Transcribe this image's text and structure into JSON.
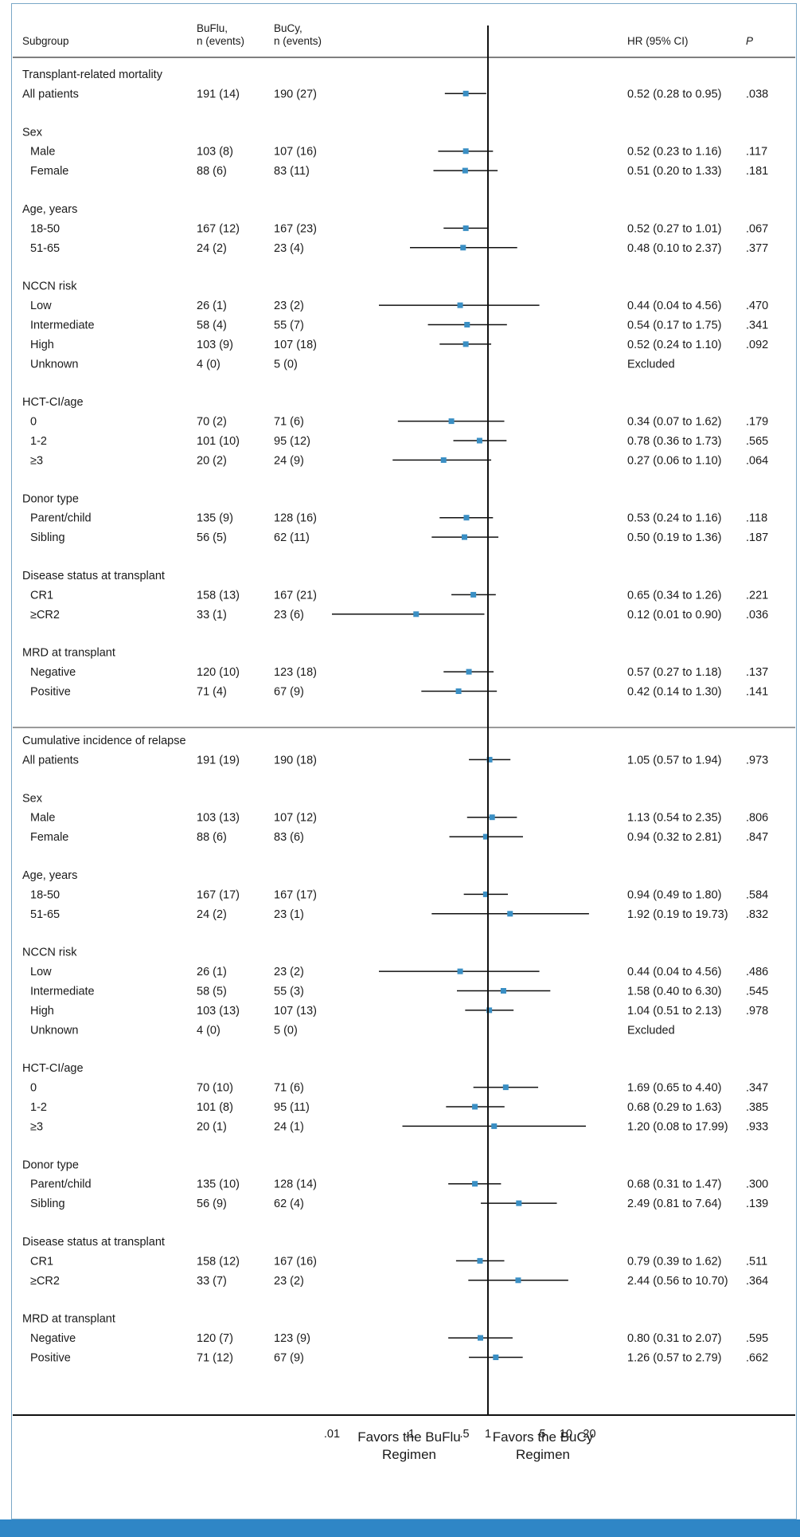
{
  "colors": {
    "frame": "#7aa7c7",
    "bottom_bar": "#2f86c6",
    "marker": "#3a8fc4",
    "line": "#111111",
    "divider": "#9a9a9a"
  },
  "header": {
    "subgroup": "Subgroup",
    "buflu_line1": "BuFlu,",
    "buflu_line2": "n (events)",
    "bucy_line1": "BuCy,",
    "bucy_line2": "n (events)",
    "hr": "HR (95% CI)",
    "p": "P"
  },
  "footer": {
    "favors_left_line1": "Favors the BuFlu",
    "favors_left_line2": "Regimen",
    "favors_right_line1": "Favors the BuCy",
    "favors_right_line2": "Regimen"
  },
  "chart_data": {
    "type": "forest",
    "x_scale": "log",
    "x_ticks": [
      {
        "value": 0.01,
        "label": ".01"
      },
      {
        "value": 0.1,
        "label": ".1"
      },
      {
        "value": 0.5,
        "label": ".5"
      },
      {
        "value": 1,
        "label": "1"
      },
      {
        "value": 5,
        "label": "5"
      },
      {
        "value": 10,
        "label": "10"
      },
      {
        "value": 20,
        "label": "20"
      }
    ],
    "reference_line": 1,
    "sections": [
      {
        "title": "Transplant-related mortality",
        "groups": [
          {
            "title": "",
            "rows": [
              {
                "label": "All patients",
                "buflu": "191 (14)",
                "bucy": "190 (27)",
                "hr": 0.52,
                "lo": 0.28,
                "hi": 0.95,
                "hr_text": "0.52 (0.28 to 0.95)",
                "p": ".038"
              }
            ]
          },
          {
            "title": "Sex",
            "rows": [
              {
                "label": "Male",
                "buflu": "103 (8)",
                "bucy": "107 (16)",
                "hr": 0.52,
                "lo": 0.23,
                "hi": 1.16,
                "hr_text": "0.52 (0.23 to 1.16)",
                "p": ".117"
              },
              {
                "label": "Female",
                "buflu": "88 (6)",
                "bucy": "83 (11)",
                "hr": 0.51,
                "lo": 0.2,
                "hi": 1.33,
                "hr_text": "0.51 (0.20 to 1.33)",
                "p": ".181"
              }
            ]
          },
          {
            "title": "Age, years",
            "rows": [
              {
                "label": "18-50",
                "buflu": "167 (12)",
                "bucy": "167 (23)",
                "hr": 0.52,
                "lo": 0.27,
                "hi": 1.01,
                "hr_text": "0.52 (0.27 to 1.01)",
                "p": ".067"
              },
              {
                "label": "51-65",
                "buflu": "24 (2)",
                "bucy": "23 (4)",
                "hr": 0.48,
                "lo": 0.1,
                "hi": 2.37,
                "hr_text": "0.48 (0.10 to 2.37)",
                "p": ".377"
              }
            ]
          },
          {
            "title": "NCCN risk",
            "rows": [
              {
                "label": "Low",
                "buflu": "26 (1)",
                "bucy": "23 (2)",
                "hr": 0.44,
                "lo": 0.04,
                "hi": 4.56,
                "hr_text": "0.44 (0.04 to 4.56)",
                "p": ".470"
              },
              {
                "label": "Intermediate",
                "buflu": "58 (4)",
                "bucy": "55 (7)",
                "hr": 0.54,
                "lo": 0.17,
                "hi": 1.75,
                "hr_text": "0.54 (0.17 to 1.75)",
                "p": ".341"
              },
              {
                "label": "High",
                "buflu": "103 (9)",
                "bucy": "107 (18)",
                "hr": 0.52,
                "lo": 0.24,
                "hi": 1.1,
                "hr_text": "0.52 (0.24 to 1.10)",
                "p": ".092"
              },
              {
                "label": "Unknown",
                "buflu": "4 (0)",
                "bucy": "5 (0)",
                "hr": null,
                "lo": null,
                "hi": null,
                "hr_text": "Excluded",
                "p": ""
              }
            ]
          },
          {
            "title": "HCT-CI/age",
            "rows": [
              {
                "label": "0",
                "buflu": "70 (2)",
                "bucy": "71 (6)",
                "hr": 0.34,
                "lo": 0.07,
                "hi": 1.62,
                "hr_text": "0.34 (0.07 to 1.62)",
                "p": ".179"
              },
              {
                "label": "1-2",
                "buflu": "101 (10)",
                "bucy": "95 (12)",
                "hr": 0.78,
                "lo": 0.36,
                "hi": 1.73,
                "hr_text": "0.78 (0.36 to 1.73)",
                "p": ".565"
              },
              {
                "label": "≥3",
                "buflu": "20 (2)",
                "bucy": "24 (9)",
                "hr": 0.27,
                "lo": 0.06,
                "hi": 1.1,
                "hr_text": "0.27 (0.06 to 1.10)",
                "p": ".064"
              }
            ]
          },
          {
            "title": "Donor type",
            "rows": [
              {
                "label": "Parent/child",
                "buflu": "135 (9)",
                "bucy": "128 (16)",
                "hr": 0.53,
                "lo": 0.24,
                "hi": 1.16,
                "hr_text": "0.53 (0.24 to 1.16)",
                "p": ".118"
              },
              {
                "label": "Sibling",
                "buflu": "56 (5)",
                "bucy": "62 (11)",
                "hr": 0.5,
                "lo": 0.19,
                "hi": 1.36,
                "hr_text": "0.50 (0.19 to 1.36)",
                "p": ".187"
              }
            ]
          },
          {
            "title": "Disease status at transplant",
            "rows": [
              {
                "label": "CR1",
                "buflu": "158 (13)",
                "bucy": "167 (21)",
                "hr": 0.65,
                "lo": 0.34,
                "hi": 1.26,
                "hr_text": "0.65 (0.34 to 1.26)",
                "p": ".221"
              },
              {
                "label": "≥CR2",
                "buflu": "33 (1)",
                "bucy": "23 (6)",
                "hr": 0.12,
                "lo": 0.01,
                "hi": 0.9,
                "hr_text": "0.12 (0.01 to 0.90)",
                "p": ".036"
              }
            ]
          },
          {
            "title": "MRD at transplant",
            "rows": [
              {
                "label": "Negative",
                "buflu": "120 (10)",
                "bucy": "123 (18)",
                "hr": 0.57,
                "lo": 0.27,
                "hi": 1.18,
                "hr_text": "0.57 (0.27 to 1.18)",
                "p": ".137"
              },
              {
                "label": "Positive",
                "buflu": "71 (4)",
                "bucy": "67 (9)",
                "hr": 0.42,
                "lo": 0.14,
                "hi": 1.3,
                "hr_text": "0.42 (0.14 to 1.30)",
                "p": ".141"
              }
            ]
          }
        ]
      },
      {
        "title": "Cumulative incidence of relapse",
        "groups": [
          {
            "title": "",
            "rows": [
              {
                "label": "All patients",
                "buflu": "191 (19)",
                "bucy": "190 (18)",
                "hr": 1.05,
                "lo": 0.57,
                "hi": 1.94,
                "hr_text": "1.05 (0.57 to 1.94)",
                "p": ".973"
              }
            ]
          },
          {
            "title": "Sex",
            "rows": [
              {
                "label": "Male",
                "buflu": "103 (13)",
                "bucy": "107 (12)",
                "hr": 1.13,
                "lo": 0.54,
                "hi": 2.35,
                "hr_text": "1.13 (0.54 to 2.35)",
                "p": ".806"
              },
              {
                "label": "Female",
                "buflu": "88 (6)",
                "bucy": "83 (6)",
                "hr": 0.94,
                "lo": 0.32,
                "hi": 2.81,
                "hr_text": "0.94 (0.32 to 2.81)",
                "p": ".847"
              }
            ]
          },
          {
            "title": "Age, years",
            "rows": [
              {
                "label": "18-50",
                "buflu": "167 (17)",
                "bucy": "167 (17)",
                "hr": 0.94,
                "lo": 0.49,
                "hi": 1.8,
                "hr_text": "0.94 (0.49 to 1.80)",
                "p": ".584"
              },
              {
                "label": "51-65",
                "buflu": "24 (2)",
                "bucy": "23 (1)",
                "hr": 1.92,
                "lo": 0.19,
                "hi": 19.73,
                "hr_text": "1.92 (0.19 to 19.73)",
                "p": ".832"
              }
            ]
          },
          {
            "title": "NCCN risk",
            "rows": [
              {
                "label": "Low",
                "buflu": "26 (1)",
                "bucy": "23 (2)",
                "hr": 0.44,
                "lo": 0.04,
                "hi": 4.56,
                "hr_text": "0.44 (0.04 to 4.56)",
                "p": ".486"
              },
              {
                "label": "Intermediate",
                "buflu": "58 (5)",
                "bucy": "55 (3)",
                "hr": 1.58,
                "lo": 0.4,
                "hi": 6.3,
                "hr_text": "1.58 (0.40 to 6.30)",
                "p": ".545"
              },
              {
                "label": "High",
                "buflu": "103 (13)",
                "bucy": "107 (13)",
                "hr": 1.04,
                "lo": 0.51,
                "hi": 2.13,
                "hr_text": "1.04 (0.51 to 2.13)",
                "p": ".978"
              },
              {
                "label": "Unknown",
                "buflu": "4 (0)",
                "bucy": "5 (0)",
                "hr": null,
                "lo": null,
                "hi": null,
                "hr_text": "Excluded",
                "p": ""
              }
            ]
          },
          {
            "title": "HCT-CI/age",
            "rows": [
              {
                "label": "0",
                "buflu": "70 (10)",
                "bucy": "71 (6)",
                "hr": 1.69,
                "lo": 0.65,
                "hi": 4.4,
                "hr_text": "1.69 (0.65 to 4.40)",
                "p": ".347"
              },
              {
                "label": "1-2",
                "buflu": "101 (8)",
                "bucy": "95 (11)",
                "hr": 0.68,
                "lo": 0.29,
                "hi": 1.63,
                "hr_text": "0.68 (0.29 to 1.63)",
                "p": ".385"
              },
              {
                "label": "≥3",
                "buflu": "20 (1)",
                "bucy": "24 (1)",
                "hr": 1.2,
                "lo": 0.08,
                "hi": 17.99,
                "hr_text": "1.20 (0.08 to 17.99)",
                "p": ".933"
              }
            ]
          },
          {
            "title": "Donor type",
            "rows": [
              {
                "label": "Parent/child",
                "buflu": "135 (10)",
                "bucy": "128 (14)",
                "hr": 0.68,
                "lo": 0.31,
                "hi": 1.47,
                "hr_text": "0.68 (0.31 to 1.47)",
                "p": ".300"
              },
              {
                "label": "Sibling",
                "buflu": "56 (9)",
                "bucy": "62 (4)",
                "hr": 2.49,
                "lo": 0.81,
                "hi": 7.64,
                "hr_text": "2.49 (0.81 to 7.64)",
                "p": ".139"
              }
            ]
          },
          {
            "title": "Disease status at transplant",
            "rows": [
              {
                "label": "CR1",
                "buflu": "158 (12)",
                "bucy": "167 (16)",
                "hr": 0.79,
                "lo": 0.39,
                "hi": 1.62,
                "hr_text": "0.79 (0.39 to 1.62)",
                "p": ".511"
              },
              {
                "label": "≥CR2",
                "buflu": "33 (7)",
                "bucy": "23 (2)",
                "hr": 2.44,
                "lo": 0.56,
                "hi": 10.7,
                "hr_text": "2.44 (0.56 to 10.70)",
                "p": ".364"
              }
            ]
          },
          {
            "title": "MRD at transplant",
            "rows": [
              {
                "label": "Negative",
                "buflu": "120 (7)",
                "bucy": "123 (9)",
                "hr": 0.8,
                "lo": 0.31,
                "hi": 2.07,
                "hr_text": "0.80 (0.31 to 2.07)",
                "p": ".595"
              },
              {
                "label": "Positive",
                "buflu": "71 (12)",
                "bucy": "67 (9)",
                "hr": 1.26,
                "lo": 0.57,
                "hi": 2.79,
                "hr_text": "1.26 (0.57 to 2.79)",
                "p": ".662"
              }
            ]
          }
        ]
      }
    ]
  }
}
